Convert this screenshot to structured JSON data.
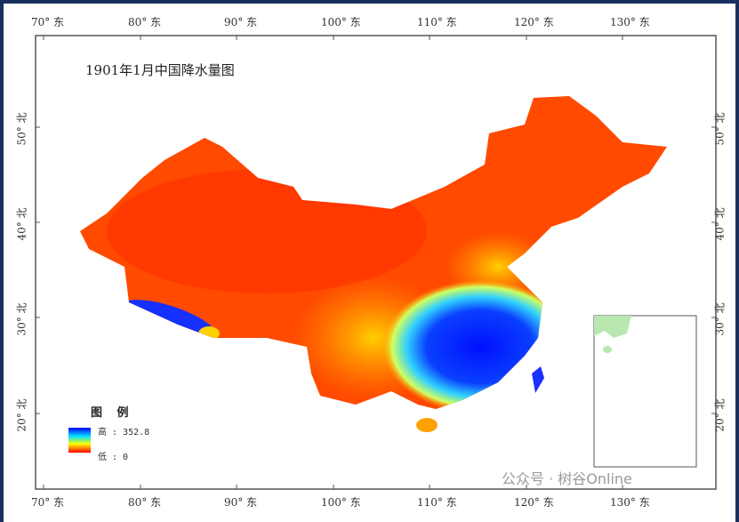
{
  "title": "1901年1月中国降水量图",
  "lon_labels": [
    "70° 东",
    "80° 东",
    "90° 东",
    "100° 东",
    "110° 东",
    "120° 东",
    "130° 东"
  ],
  "lat_labels": [
    "50° 北",
    "40° 北",
    "30° 北",
    "20° 北"
  ],
  "legend": {
    "title": "图 例",
    "high_label": "高 : 352.8",
    "low_label": "低 : 0",
    "colors": [
      "#0000ff",
      "#00ffff",
      "#ffff00",
      "#ff0000"
    ]
  },
  "watermark": "公众号 · 树谷Online"
}
